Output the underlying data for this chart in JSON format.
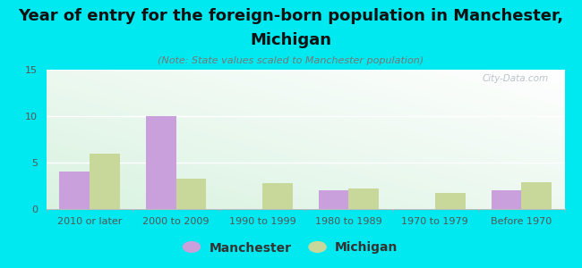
{
  "title_line1": "Year of entry for the foreign-born population in Manchester,",
  "title_line2": "Michigan",
  "subtitle": "(Note: State values scaled to Manchester population)",
  "categories": [
    "2010 or later",
    "2000 to 2009",
    "1990 to 1999",
    "1980 to 1989",
    "1970 to 1979",
    "Before 1970"
  ],
  "manchester_values": [
    4,
    10,
    0,
    2,
    0,
    2
  ],
  "michigan_values": [
    6,
    3.3,
    2.8,
    2.2,
    1.7,
    2.9
  ],
  "manchester_color": "#c9a0dc",
  "michigan_color": "#c8d89a",
  "background_color": "#00e8f0",
  "ylim": [
    0,
    15
  ],
  "yticks": [
    0,
    5,
    10,
    15
  ],
  "bar_width": 0.35,
  "title_fontsize": 13,
  "subtitle_fontsize": 8,
  "tick_fontsize": 8,
  "legend_fontsize": 10,
  "watermark": "City-Data.com"
}
